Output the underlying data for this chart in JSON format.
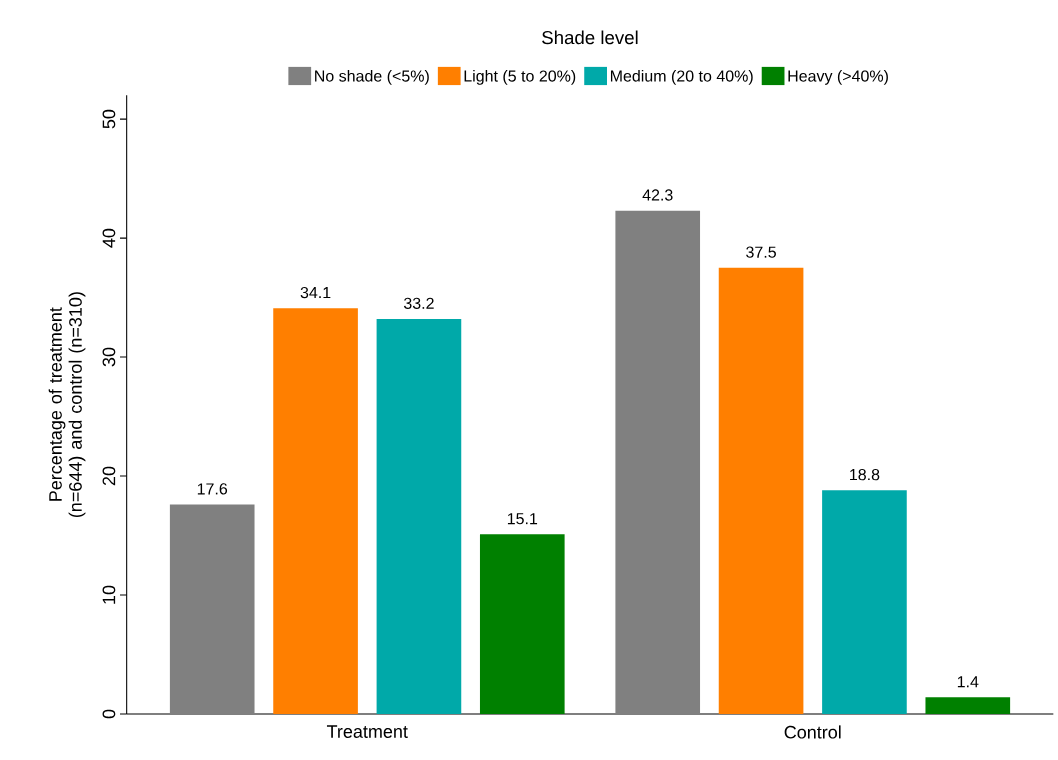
{
  "chart_data": {
    "type": "bar",
    "legend_title": "Shade level",
    "ylabel": "Percentage of treatment (n=644) and control (n=310)",
    "categories": [
      "Treatment",
      "Control"
    ],
    "series": [
      {
        "name": "No shade (<5%)",
        "color": "#808080",
        "values": [
          17.6,
          42.3
        ]
      },
      {
        "name": "Light (5 to 20%)",
        "color": "#ff7f00",
        "values": [
          34.1,
          37.5
        ]
      },
      {
        "name": "Medium (20 to 40%)",
        "color": "#00a9a9",
        "values": [
          33.2,
          18.8
        ]
      },
      {
        "name": "Heavy (>40%)",
        "color": "#008000",
        "values": [
          15.1,
          1.4
        ]
      }
    ],
    "ylim": [
      0,
      52
    ],
    "yticks": [
      0,
      10,
      20,
      30,
      40,
      50
    ],
    "data_labels": true,
    "grid": false,
    "legend": "top"
  }
}
